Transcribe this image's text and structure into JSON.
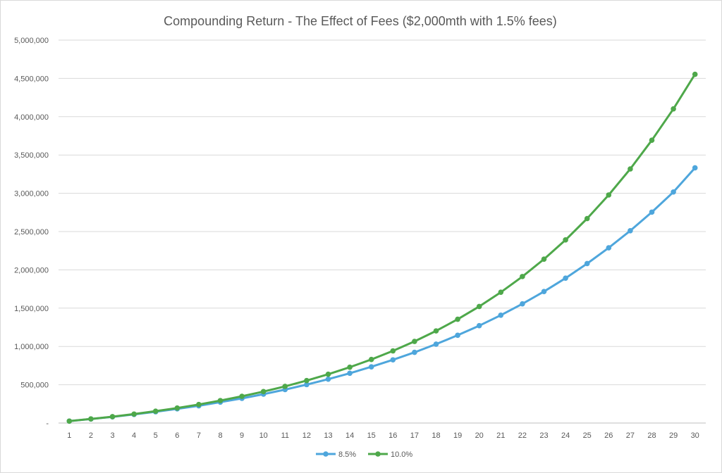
{
  "chart_data": {
    "type": "line",
    "title": "Compounding Return - The Effect of Fees ($2,000mth with 1.5% fees)",
    "xlabel": "",
    "ylabel": "",
    "x": [
      1,
      2,
      3,
      4,
      5,
      6,
      7,
      8,
      9,
      10,
      11,
      12,
      13,
      14,
      15,
      16,
      17,
      18,
      19,
      20,
      21,
      22,
      23,
      24,
      25,
      26,
      27,
      28,
      29,
      30
    ],
    "ylim": [
      0,
      5000000
    ],
    "y_ticks": [
      0,
      500000,
      1000000,
      1500000,
      2000000,
      2500000,
      3000000,
      3500000,
      4000000,
      4500000,
      5000000
    ],
    "y_tick_labels": [
      "-",
      "500,000",
      "1,000,000",
      "1,500,000",
      "2,000,000",
      "2,500,000",
      "3,000,000",
      "3,500,000",
      "4,000,000",
      "4,500,000",
      "5,000,000"
    ],
    "grid": true,
    "legend_position": "bottom",
    "series": [
      {
        "name": "8.5%",
        "color": "#4ea6dc",
        "values": [
          25000,
          52000,
          81000,
          112000,
          147000,
          185000,
          225000,
          273000,
          322000,
          377000,
          437000,
          502000,
          573000,
          650000,
          734000,
          825000,
          923000,
          1030000,
          1146000,
          1271000,
          1408000,
          1556000,
          1717000,
          1892000,
          2082000,
          2288000,
          2511000,
          2754000,
          3017000,
          3332000
        ]
      },
      {
        "name": "10.0%",
        "color": "#4ea84a",
        "values": [
          25000,
          53000,
          83000,
          117000,
          155000,
          196000,
          242000,
          293000,
          349000,
          411000,
          479000,
          554000,
          637000,
          729000,
          830000,
          942000,
          1066000,
          1203000,
          1355000,
          1522000,
          1708000,
          1913000,
          2140000,
          2391000,
          2670000,
          2978000,
          3318000,
          3693000,
          4102000,
          4554000
        ]
      }
    ]
  }
}
